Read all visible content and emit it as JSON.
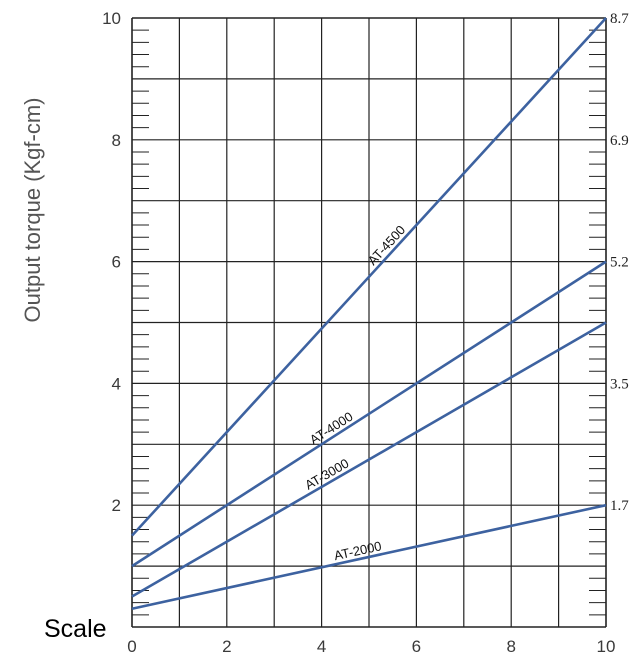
{
  "chart_data": {
    "type": "line",
    "title": "",
    "xlabel": "Scale",
    "ylabel": "Output torque (Kgf-cm)",
    "xlim": [
      0,
      10
    ],
    "ylim": [
      0,
      10
    ],
    "x_ticks": [
      "0",
      "2",
      "4",
      "6",
      "8",
      "10"
    ],
    "y_ticks": [
      "2",
      "4",
      "6",
      "8",
      "10"
    ],
    "right_axis_ticks": [
      {
        "at": 2,
        "label": "1.7"
      },
      {
        "at": 4,
        "label": "3.5"
      },
      {
        "at": 6,
        "label": "5.2"
      },
      {
        "at": 8,
        "label": "6.9"
      },
      {
        "at": 10,
        "label": "8.7"
      }
    ],
    "grid": true,
    "series": [
      {
        "name": "AT-4500",
        "x": [
          0,
          10
        ],
        "y": [
          1.5,
          10.0
        ],
        "label_at": 5.5
      },
      {
        "name": "AT-4000",
        "x": [
          0,
          10
        ],
        "y": [
          1.0,
          6.0
        ],
        "label_at": 4.3
      },
      {
        "name": "AT-3000",
        "x": [
          0,
          10
        ],
        "y": [
          0.5,
          5.0
        ],
        "label_at": 4.2
      },
      {
        "name": "AT-2000",
        "x": [
          0,
          10
        ],
        "y": [
          0.3,
          2.0
        ],
        "label_at": 4.8
      }
    ],
    "line_color": "#3d62a0"
  }
}
